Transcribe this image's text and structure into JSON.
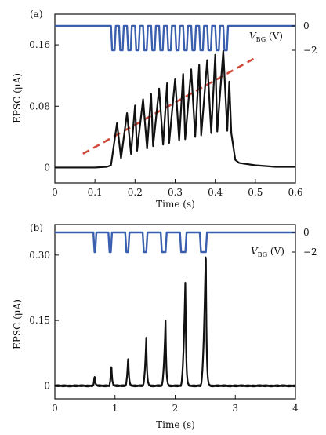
{
  "chart_data": [
    {
      "type": "line",
      "panel_label": "(a)",
      "xlabel": "Time (s)",
      "ylabel": "EPSC (μA)",
      "xlim": [
        0,
        0.6
      ],
      "ylim": [
        -0.02,
        0.2
      ],
      "xticks": [
        "0",
        "0.1",
        "0.2",
        "0.3",
        "0.4",
        "0.5",
        "0.6"
      ],
      "yticks": [
        "0",
        "0.08",
        "0.16"
      ],
      "ytick_values": [
        0,
        0.08,
        0.16
      ],
      "xtick_values": [
        0,
        0.1,
        0.2,
        0.3,
        0.4,
        0.5,
        0.6
      ],
      "right_axis": {
        "label_main": "V",
        "label_sub": "BG",
        "label_unit": " (V)",
        "ticks": [
          "0",
          "−2"
        ],
        "tick_values": [
          0,
          -2
        ],
        "range": [
          -9,
          1
        ]
      },
      "gate_pulses": {
        "level_high": 0,
        "level_low": -2,
        "start": [
          0.14,
          0.16,
          0.18,
          0.2,
          0.22,
          0.24,
          0.26,
          0.28,
          0.3,
          0.32,
          0.34,
          0.36,
          0.38,
          0.4,
          0.42
        ],
        "width": 0.012,
        "color": "#3a5faf"
      },
      "trend_line": {
        "x": [
          0.07,
          0.5
        ],
        "y": [
          0.018,
          0.143
        ],
        "color": "#d24a3c",
        "style": "dashed"
      },
      "series": [
        {
          "color": "#111111",
          "x": [
            0,
            0.05,
            0.1,
            0.13,
            0.14,
            0.155,
            0.165,
            0.18,
            0.19,
            0.2,
            0.205,
            0.22,
            0.23,
            0.24,
            0.245,
            0.26,
            0.27,
            0.28,
            0.285,
            0.3,
            0.31,
            0.32,
            0.325,
            0.34,
            0.35,
            0.36,
            0.365,
            0.38,
            0.39,
            0.4,
            0.405,
            0.42,
            0.43,
            0.435,
            0.44,
            0.45,
            0.46,
            0.5,
            0.55,
            0.6
          ],
          "y": [
            0,
            0,
            0,
            0.001,
            0.003,
            0.058,
            0.012,
            0.071,
            0.018,
            0.081,
            0.022,
            0.089,
            0.025,
            0.096,
            0.028,
            0.103,
            0.03,
            0.11,
            0.032,
            0.116,
            0.035,
            0.122,
            0.037,
            0.128,
            0.04,
            0.134,
            0.042,
            0.14,
            0.045,
            0.147,
            0.047,
            0.152,
            0.048,
            0.112,
            0.045,
            0.01,
            0.006,
            0.003,
            0.001,
            0.001
          ]
        }
      ]
    },
    {
      "type": "line",
      "panel_label": "(b)",
      "xlabel": "Time (s)",
      "ylabel": "EPSC (μA)",
      "xlim": [
        0,
        4
      ],
      "ylim": [
        -0.03,
        0.37
      ],
      "xticks": [
        "0",
        "1",
        "2",
        "3",
        "4"
      ],
      "yticks": [
        "0",
        "0.15",
        "0.30"
      ],
      "ytick_values": [
        0,
        0.15,
        0.3
      ],
      "xtick_values": [
        0,
        1,
        2,
        3,
        4
      ],
      "right_axis": {
        "label_main": "V",
        "label_sub": "BG",
        "label_unit": " (V)",
        "ticks": [
          "0",
          "−2"
        ],
        "tick_values": [
          0,
          -2
        ],
        "range": [
          -12,
          1
        ]
      },
      "gate_pulses": {
        "level_high": 0,
        "level_low": -2,
        "start": [
          0.64,
          0.89,
          1.17,
          1.46,
          1.76,
          2.08,
          2.41
        ],
        "width": [
          0.05,
          0.06,
          0.07,
          0.08,
          0.1,
          0.11,
          0.12
        ],
        "color": "#3a5faf"
      },
      "series": [
        {
          "color": "#111111",
          "peaks": [
            {
              "t": 0.66,
              "h": 0.024,
              "rise": 0.03
            },
            {
              "t": 0.94,
              "h": 0.05,
              "rise": 0.04
            },
            {
              "t": 1.22,
              "h": 0.069,
              "rise": 0.05
            },
            {
              "t": 1.52,
              "h": 0.109,
              "rise": 0.06
            },
            {
              "t": 1.84,
              "h": 0.15,
              "rise": 0.07
            },
            {
              "t": 2.17,
              "h": 0.243,
              "rise": 0.08
            },
            {
              "t": 2.51,
              "h": 0.32,
              "rise": 0.09
            }
          ],
          "baseline": 0,
          "noise": 0.0015
        }
      ]
    }
  ]
}
